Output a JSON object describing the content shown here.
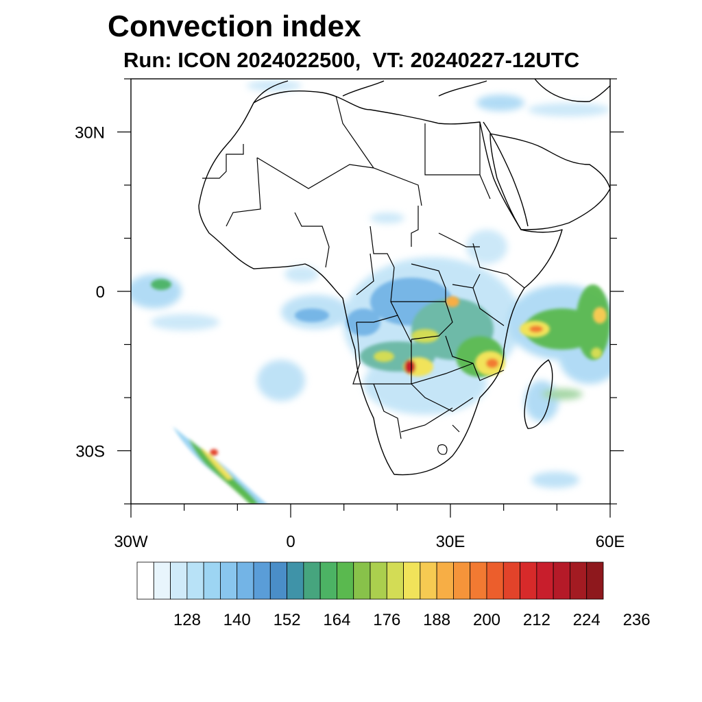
{
  "figure": {
    "title": "Convection index",
    "subtitle": "Run: ICON 2024022500,  VT: 20240227-12UTC"
  },
  "map": {
    "lon_range": [
      -30,
      60
    ],
    "lat_range": [
      -40,
      40
    ],
    "lat_ticks": [
      {
        "value": 30,
        "label": "30N"
      },
      {
        "value": 0,
        "label": "0"
      },
      {
        "value": -30,
        "label": "30S"
      }
    ],
    "lon_ticks": [
      {
        "value": -30,
        "label": "30W"
      },
      {
        "value": 0,
        "label": "0"
      },
      {
        "value": 30,
        "label": "30E"
      },
      {
        "value": 60,
        "label": "60E"
      }
    ]
  },
  "colorbar": {
    "colors": [
      "#ffffff",
      "#e8f5fc",
      "#d0ebf9",
      "#b8e2f7",
      "#9dd5f3",
      "#89c6ee",
      "#73b4e6",
      "#5a9dd8",
      "#4a8ec8",
      "#3f93a8",
      "#46a57e",
      "#4cb364",
      "#5ab94f",
      "#88c24a",
      "#abcf4e",
      "#d3dc55",
      "#f1e35a",
      "#f6ca52",
      "#f7ae45",
      "#f5943a",
      "#f27a32",
      "#ec5e2c",
      "#e2432a",
      "#d72a2a",
      "#c81e2c",
      "#b51a28",
      "#a31b22",
      "#8e181d"
    ],
    "labels": [
      "128",
      "140",
      "152",
      "164",
      "176",
      "188",
      "200",
      "212",
      "224",
      "236"
    ]
  }
}
